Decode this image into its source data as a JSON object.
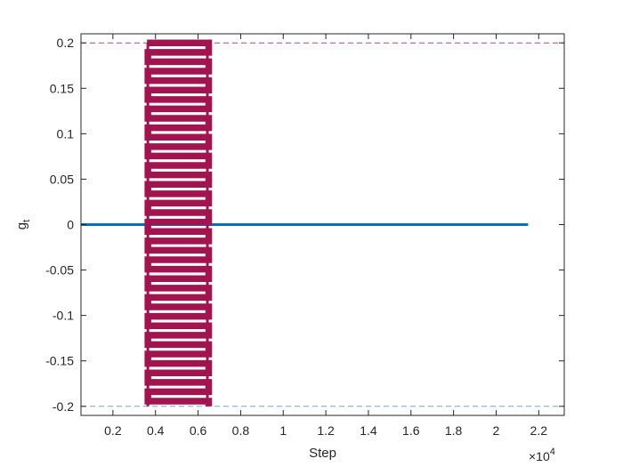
{
  "chart_data": {
    "type": "line",
    "title": "",
    "xlabel": "Step",
    "ylabel": "g",
    "ylabel_subscript": "t",
    "x_exponent_label": "×10",
    "x_exponent": "4",
    "xlim": [
      500,
      23200
    ],
    "ylim": [
      -0.21,
      0.21
    ],
    "x_scale_factor": 10000,
    "xticks": [
      2000,
      4000,
      6000,
      8000,
      10000,
      12000,
      14000,
      16000,
      18000,
      20000,
      22000
    ],
    "xtick_labels": [
      "0.2",
      "0.4",
      "0.6",
      "0.8",
      "1",
      "1.2",
      "1.4",
      "1.6",
      "1.8",
      "2",
      "2.2"
    ],
    "yticks": [
      -0.2,
      -0.15,
      -0.1,
      -0.05,
      0,
      0.05,
      0.1,
      0.15,
      0.2
    ],
    "ytick_labels": [
      "-0.2",
      "-0.15",
      "-0.1",
      "-0.05",
      "0",
      "0.05",
      "0.1",
      "0.15",
      "0.2"
    ],
    "grid": false,
    "series": [
      {
        "color": "#0072bd",
        "style": "solid",
        "x": [
          500,
          21500
        ],
        "y": [
          0,
          0
        ]
      },
      {
        "color": "#a2144f",
        "style": "oscillation-band",
        "x_range": [
          3600,
          6500
        ],
        "y_range": [
          -0.2,
          0.2
        ],
        "note_values": "dense oscillation between -0.2 and 0.2"
      }
    ],
    "reference_lines": [
      {
        "y": 0.2,
        "color": "#a2144f",
        "style": "dashed"
      },
      {
        "y": -0.2,
        "color": "#4d8fc7",
        "style": "dashed"
      }
    ]
  }
}
